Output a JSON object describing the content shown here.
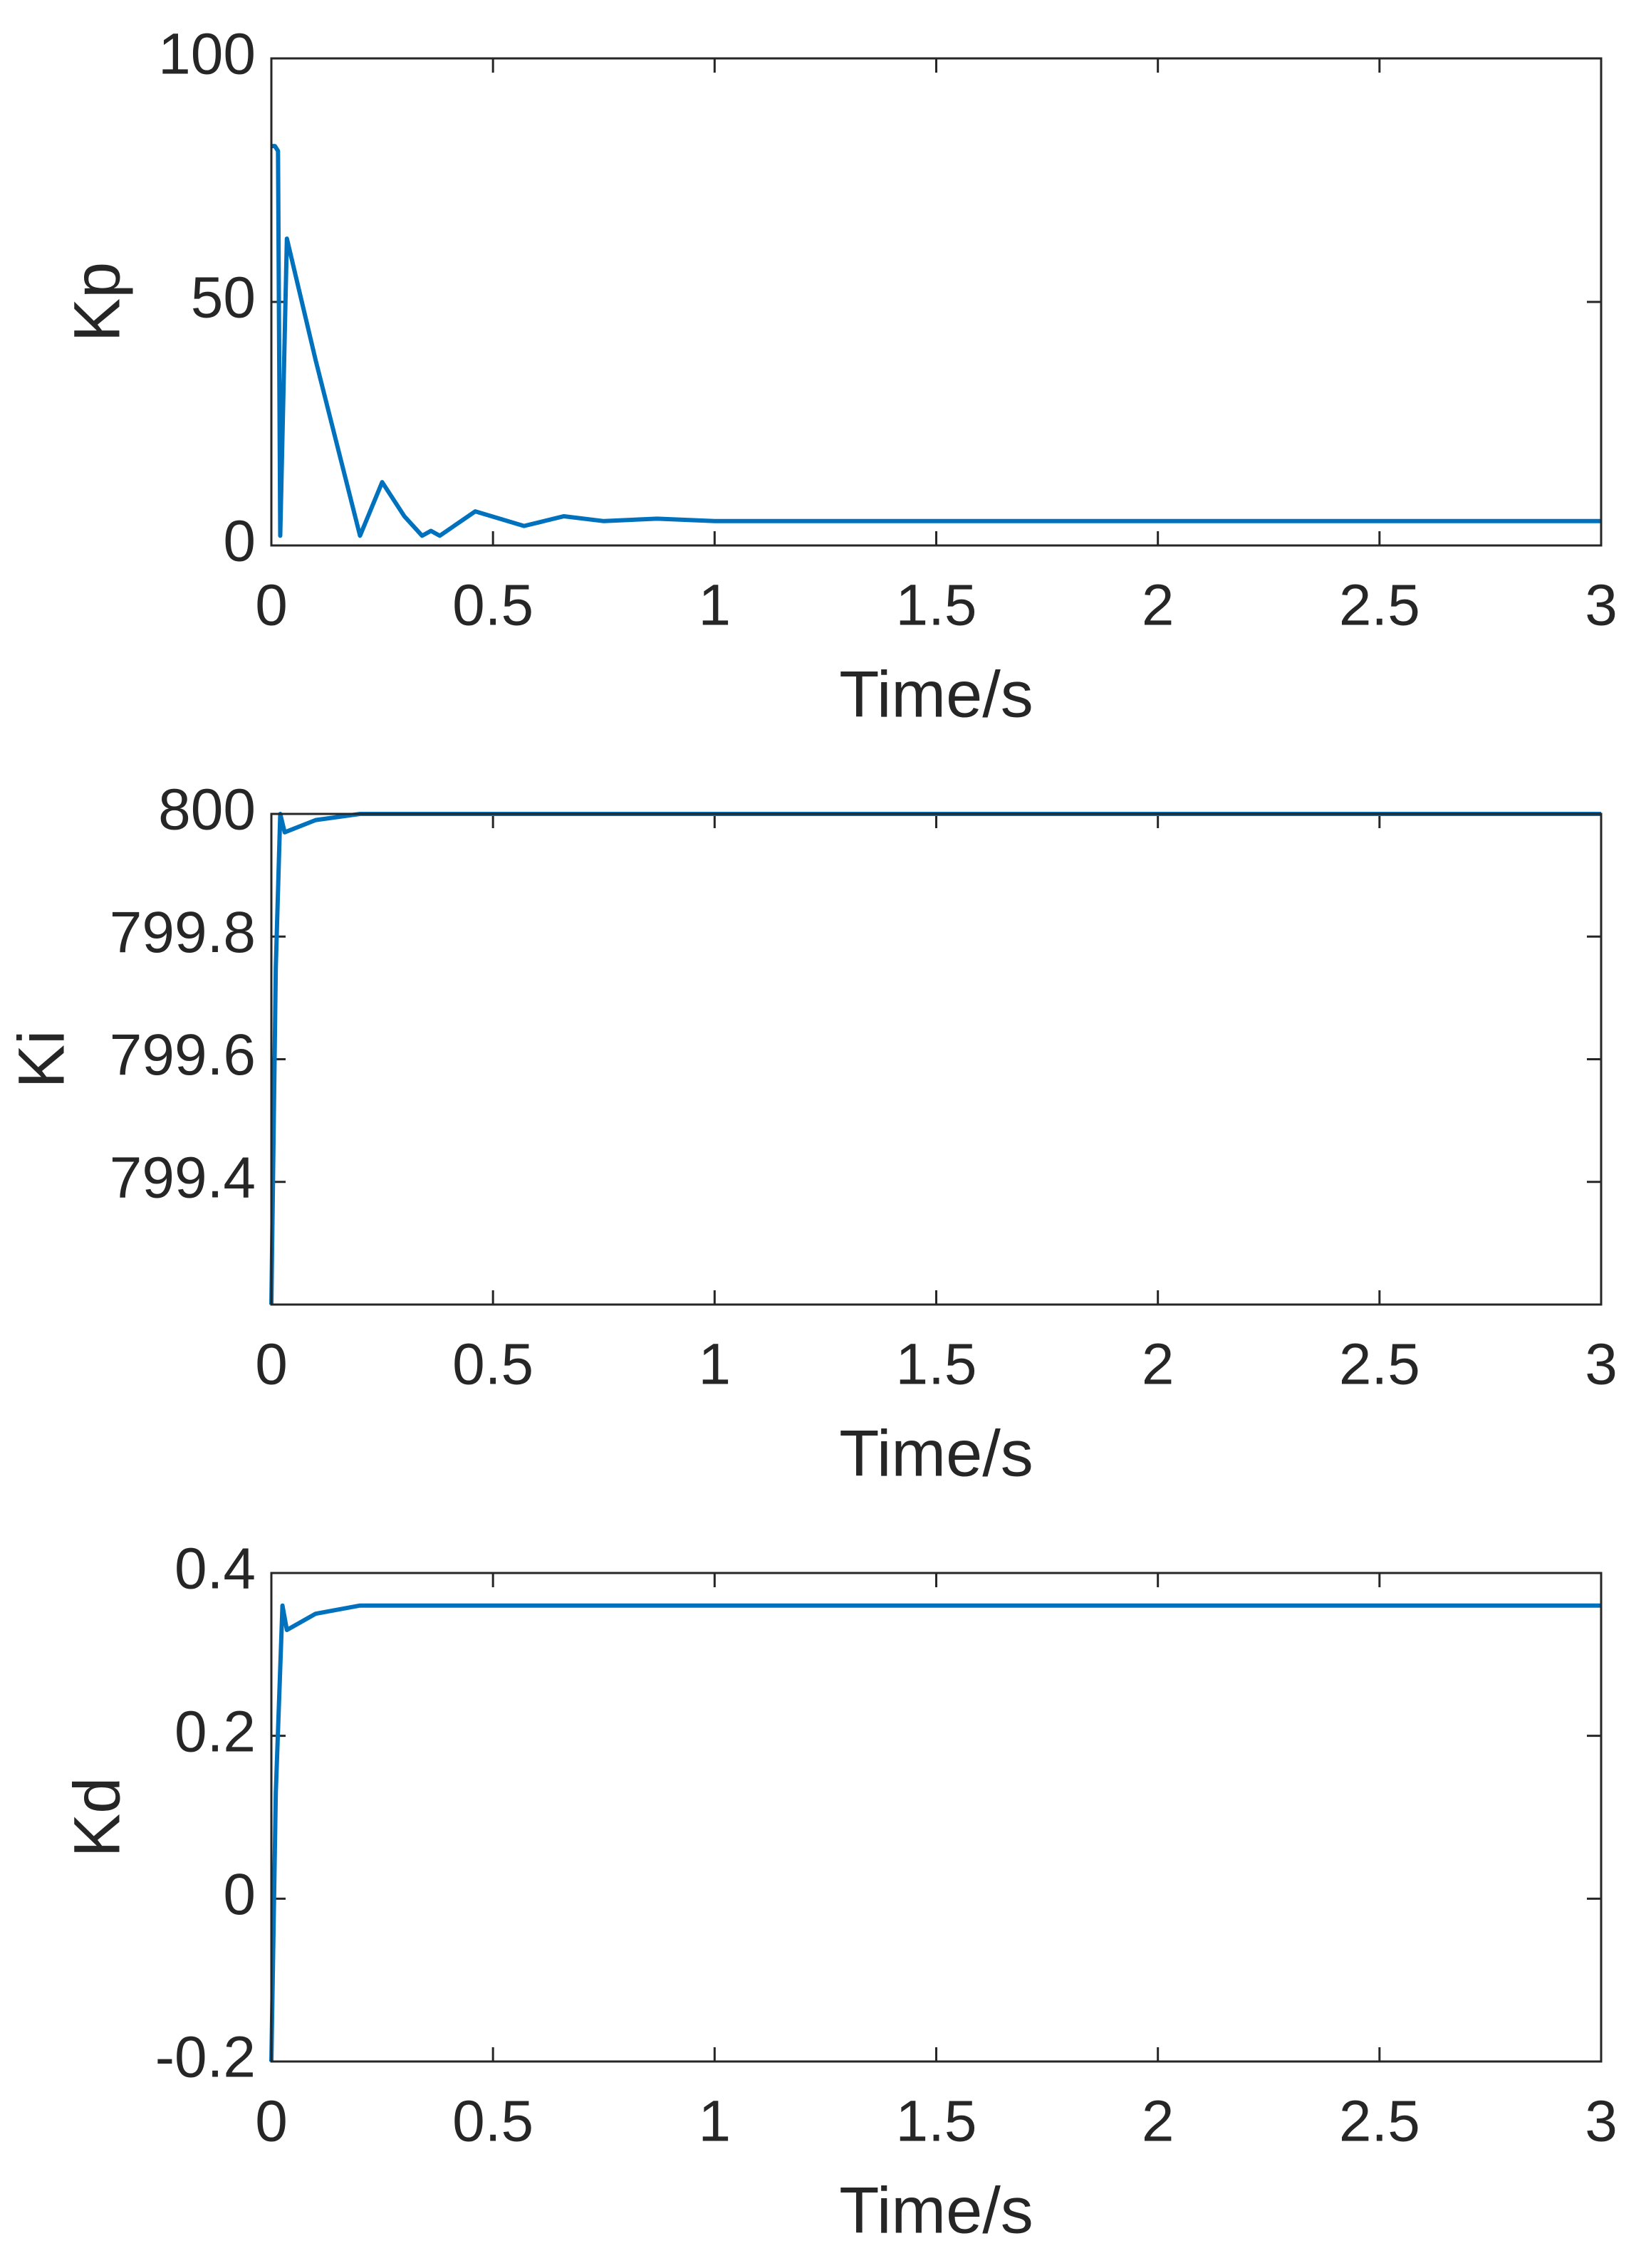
{
  "chart_data": [
    {
      "type": "line",
      "ylabel": "Kp",
      "xlabel": "Time/s",
      "x": [
        0,
        0.008,
        0.015,
        0.02,
        0.035,
        0.1,
        0.2,
        0.25,
        0.3,
        0.34,
        0.36,
        0.38,
        0.46,
        0.57,
        0.66,
        0.75,
        0.87,
        1,
        2,
        3
      ],
      "series": [
        {
          "color": "#0072bd",
          "values": [
            82,
            82,
            81,
            2,
            63,
            38,
            2,
            13,
            6,
            2,
            3,
            2,
            7,
            4,
            6,
            5,
            5.5,
            5,
            5,
            5
          ]
        }
      ],
      "xlim": [
        0,
        3
      ],
      "xticks": [
        0,
        0.5,
        1,
        1.5,
        2,
        2.5,
        3
      ],
      "ylim": [
        0,
        100
      ],
      "yticks": [
        0,
        50,
        100
      ],
      "grid": false
    },
    {
      "type": "line",
      "ylabel": "Ki",
      "xlabel": "Time/s",
      "x": [
        0,
        0.01,
        0.02,
        0.03,
        0.1,
        0.2,
        0.5,
        1,
        2,
        3
      ],
      "series": [
        {
          "color": "#0072bd",
          "values": [
            799.2,
            799.75,
            800,
            799.97,
            799.99,
            800,
            800,
            800,
            800,
            800
          ]
        }
      ],
      "xlim": [
        0,
        3
      ],
      "xticks": [
        0,
        0.5,
        1,
        1.5,
        2,
        2.5,
        3
      ],
      "ylim": [
        799.2,
        800
      ],
      "yticks": [
        799.4,
        799.6,
        799.8,
        800
      ],
      "grid": false
    },
    {
      "type": "line",
      "ylabel": "Kd",
      "xlabel": "Time/s",
      "x": [
        0,
        0.01,
        0.025,
        0.035,
        0.1,
        0.2,
        0.3,
        0.5,
        1,
        2,
        3
      ],
      "series": [
        {
          "color": "#0072bd",
          "values": [
            -0.2,
            0.13,
            0.36,
            0.33,
            0.35,
            0.36,
            0.36,
            0.36,
            0.36,
            0.36,
            0.36
          ]
        }
      ],
      "xlim": [
        0,
        3
      ],
      "xticks": [
        0,
        0.5,
        1,
        1.5,
        2,
        2.5,
        3
      ],
      "ylim": [
        -0.2,
        0.4
      ],
      "yticks": [
        -0.2,
        0,
        0.2,
        0.4
      ],
      "grid": false
    }
  ]
}
